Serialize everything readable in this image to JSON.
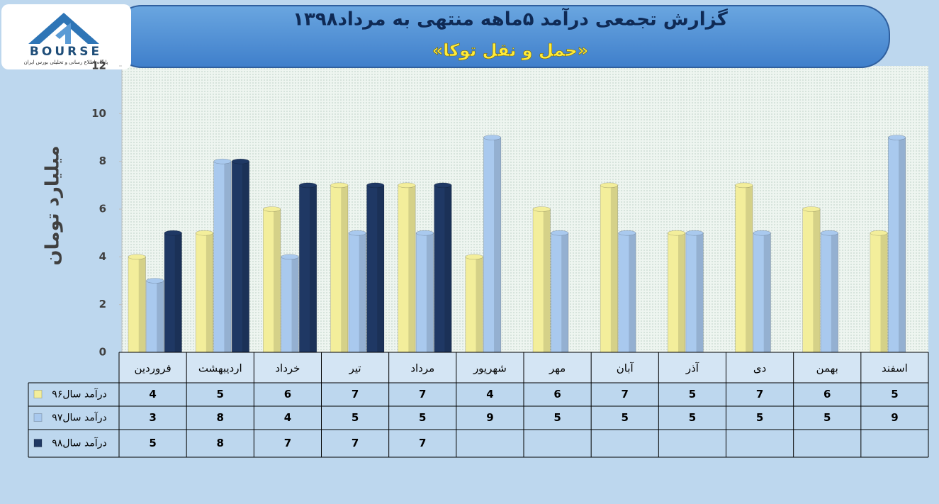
{
  "logo": {
    "text": "BOURSE",
    "subtitle": "پایگاه اطلاع رسانی و تحلیلی بورس ایران"
  },
  "chart_data": {
    "type": "bar",
    "title": "گزارش تجمعی درآمد ۵ماهه منتهی به مرداد۱۳۹۸",
    "subtitle": "«حمل و نقل توکا»",
    "y_label": "میلیارد تومان",
    "categories": [
      "فروردین",
      "اردیبهشت",
      "خرداد",
      "تیر",
      "مرداد",
      "شهریور",
      "مهر",
      "آبان",
      "آذر",
      "دی",
      "بهمن",
      "اسفند"
    ],
    "series": [
      {
        "name": "درآمد سال۹۶",
        "color": "#f3ee9b",
        "values": [
          4,
          5,
          6,
          7,
          7,
          4,
          6,
          7,
          5,
          7,
          6,
          5
        ]
      },
      {
        "name": "درآمد سال۹۷",
        "color": "#a9c9ee",
        "values": [
          3,
          8,
          4,
          5,
          5,
          9,
          5,
          5,
          5,
          5,
          5,
          9
        ]
      },
      {
        "name": "درآمد سال۹۸",
        "color": "#1f3864",
        "values": [
          5,
          8,
          7,
          7,
          7,
          null,
          null,
          null,
          null,
          null,
          null,
          null
        ]
      }
    ],
    "ylim": [
      0,
      12
    ],
    "yticks": [
      0,
      2,
      4,
      6,
      8,
      10,
      12
    ],
    "grid": false
  }
}
